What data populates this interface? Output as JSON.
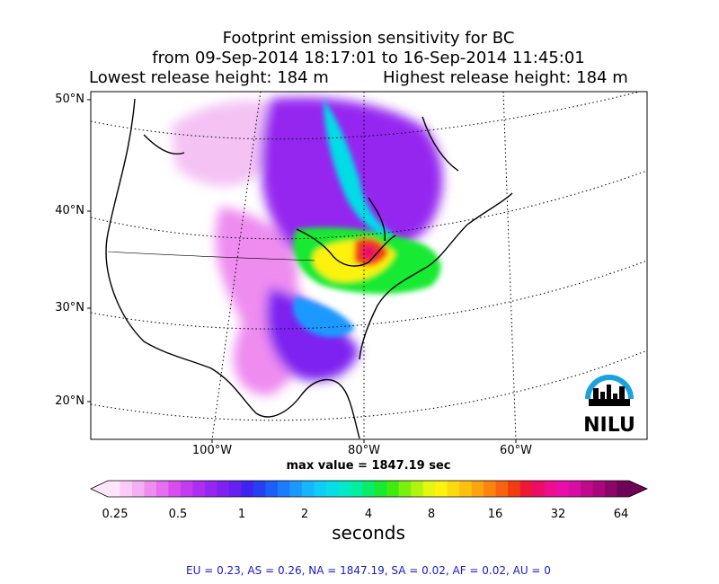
{
  "title": {
    "line1": "Footprint emission sensitivity for BC",
    "line2": "from 09-Sep-2014 18:17:01 to 16-Sep-2014 11:45:01",
    "lowest": "Lowest release height: 184 m",
    "highest": "Highest release height: 184 m"
  },
  "map": {
    "lat_labels": [
      "50°N",
      "40°N",
      "30°N",
      "20°N"
    ],
    "lon_labels": [
      "100°W",
      "80°W",
      "60°W"
    ],
    "max_value": "max value = 1847.19 sec",
    "logo": "NILU",
    "logo_color": "#1aa3dd"
  },
  "colorbar": {
    "ticks": [
      "0.25",
      "0.5",
      "1",
      "2",
      "4",
      "8",
      "16",
      "32",
      "64"
    ],
    "unit": "seconds",
    "colors": [
      "#fde6fb",
      "#f8ccf7",
      "#f3b0f2",
      "#ee8cf0",
      "#e66ef0",
      "#d94cf0",
      "#c43cf0",
      "#ac2ef0",
      "#9528f0",
      "#7d22f0",
      "#6620f0",
      "#3d24f0",
      "#2440f0",
      "#1c5ef8",
      "#1c7cff",
      "#1c99ff",
      "#18b4ff",
      "#10cdf5",
      "#06dde6",
      "#04e8c8",
      "#04eea0",
      "#08ee6a",
      "#18ea30",
      "#40ec10",
      "#7af010",
      "#b0f510",
      "#e2f810",
      "#fdf210",
      "#fdda10",
      "#fdbf10",
      "#fca310",
      "#fb8410",
      "#f86210",
      "#f23c10",
      "#ec1838",
      "#ec0e66",
      "#ec0e8e",
      "#e80eaa",
      "#d60ea4",
      "#c00a8e",
      "#a8087c",
      "#8c066a",
      "#6e0456"
    ]
  },
  "region_footer": "EU = 0.23,  AS = 0.26,  NA = 1847.19,  SA = 0.02,  AF = 0.02,  AU = 0"
}
